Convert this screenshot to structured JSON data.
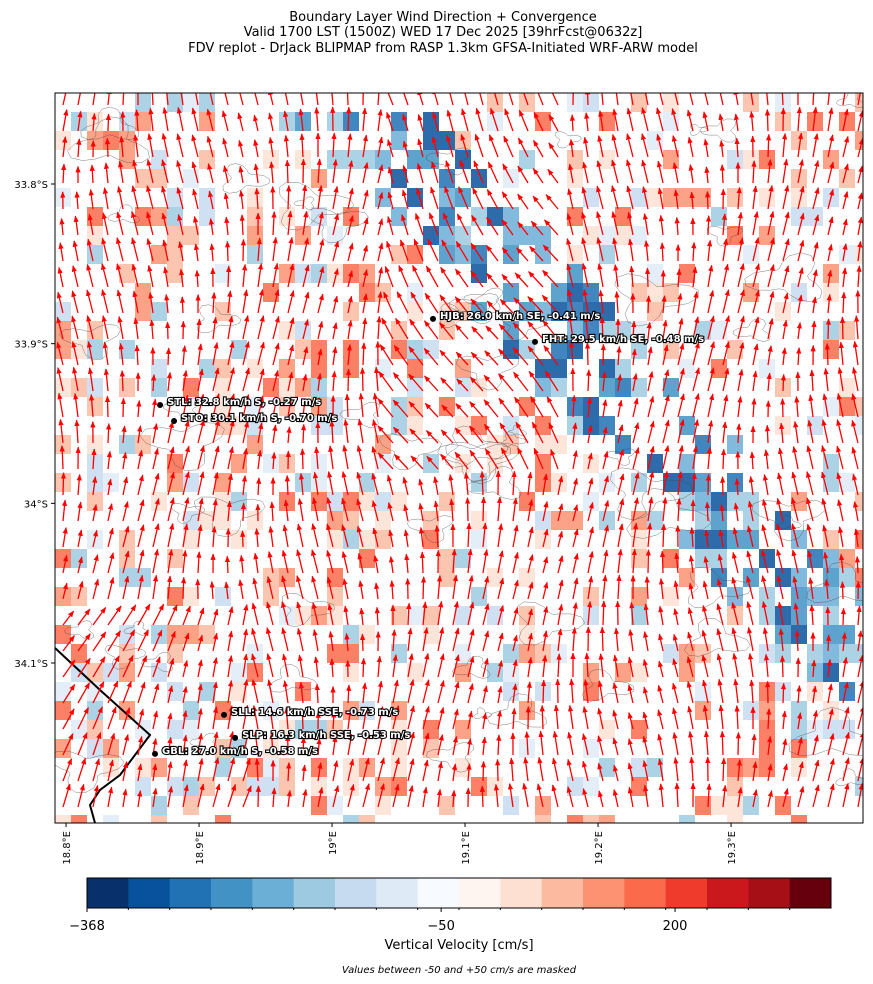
{
  "chart_data": {
    "type": "map",
    "title": [
      "Boundary Layer Wind Direction + Convergence",
      "Valid 1700 LST (1500Z) WED 17 Dec 2025 [39hrFcst@0632z]",
      "FDV replot - DrJack BLIPMAP from RASP 1.3km GFSA-Initiated WRF-ARW model"
    ],
    "xlim": [
      18.7917,
      19.3992
    ],
    "ylim": [
      -34.2002,
      -33.743
    ],
    "xticks": [
      {
        "value": 18.8,
        "label": "18.8°E"
      },
      {
        "value": 18.9,
        "label": "18.9°E"
      },
      {
        "value": 19.0,
        "label": "19°E"
      },
      {
        "value": 19.1,
        "label": "19.1°E"
      },
      {
        "value": 19.2,
        "label": "19.2°E"
      },
      {
        "value": 19.3,
        "label": "19.3°E"
      }
    ],
    "yticks": [
      {
        "value": -33.8,
        "label": "33.8°S"
      },
      {
        "value": -33.9,
        "label": "33.9°S"
      },
      {
        "value": -34.0,
        "label": "34°S"
      },
      {
        "value": -34.1,
        "label": "34.1°S"
      }
    ],
    "stations": [
      {
        "label": "HJB: 26.0 km/h SE, -0.41 m/s",
        "lon": 19.0759,
        "lat": -33.8845
      },
      {
        "label": "FHT: 29.5 km/h SE, -0.48 m/s",
        "lon": 19.1526,
        "lat": -33.8989
      },
      {
        "label": "STL: 32.8 km/h S, -0.27 m/s",
        "lon": 18.8707,
        "lat": -33.9384
      },
      {
        "label": "STO: 30.1 km/h S, -0.70 m/s",
        "lon": 18.8812,
        "lat": -33.9484
      },
      {
        "label": "SLL: 14.6 km/h SSE, -0.73 m/s",
        "lon": 18.9188,
        "lat": -34.1325
      },
      {
        "label": "SLP: 16.3 km/h SSE, -0.53 m/s",
        "lon": 18.9271,
        "lat": -34.1469
      },
      {
        "label": "GBL: 27.0 km/h S, -0.58 m/s",
        "lon": 18.8669,
        "lat": -34.1569
      }
    ],
    "arrow_color": "#ff0000",
    "colorbar": {
      "label": "Vertical Velocity [cm/s]",
      "boundaries": [
        -368,
        -331,
        -294,
        -257,
        -220,
        -183,
        -146,
        -108,
        -71,
        -34,
        11,
        56,
        100,
        145,
        190,
        234,
        279,
        324,
        368
      ],
      "colors": [
        "#08306b",
        "#08519c",
        "#2171b5",
        "#4292c6",
        "#6baed6",
        "#9ecae1",
        "#c6dbef",
        "#deebf7",
        "#f7fbff",
        "#fff5f0",
        "#fee0d2",
        "#fcbba1",
        "#fc9272",
        "#fb6a4a",
        "#ef3b2c",
        "#cb181d",
        "#a50f15",
        "#67000d"
      ],
      "ticks": [
        -368,
        -50,
        200
      ],
      "tick_labels": [
        "−368",
        "−50",
        "200"
      ]
    },
    "note": "Values between -50 and +50 cm/s are masked"
  }
}
